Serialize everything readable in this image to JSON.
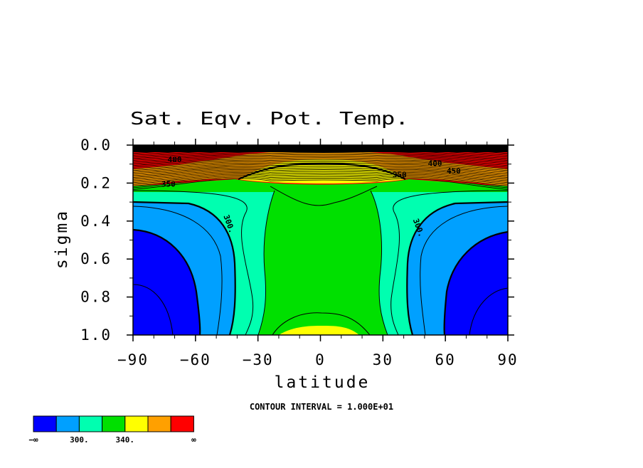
{
  "chart_data": {
    "type": "heatmap",
    "subtype": "filled-contour",
    "title": "Sat. Eqv. Pot. Temp.",
    "xlabel": "latitude",
    "ylabel": "sigma",
    "xlim": [
      -90,
      90
    ],
    "ylim": [
      0.0,
      1.0
    ],
    "y_inverted": true,
    "x_ticks": [
      -90,
      -60,
      -30,
      0,
      30,
      60,
      90
    ],
    "x_tick_labels": [
      "−90",
      "−60",
      "−30",
      "0",
      "30",
      "60",
      "90"
    ],
    "y_ticks": [
      0.0,
      0.2,
      0.4,
      0.6,
      0.8,
      1.0
    ],
    "y_tick_labels": [
      "0.0",
      "0.2",
      "0.4",
      "0.6",
      "0.8",
      "1.0"
    ],
    "contour_interval_text": "CONTOUR INTERVAL = 1.000E+01",
    "contour_interval": 10,
    "contour_labels": [
      {
        "text": "300.",
        "lat": -45,
        "sigma": 0.42
      },
      {
        "text": "300.",
        "lat": 46,
        "sigma": 0.44
      },
      {
        "text": "350",
        "lat": 38,
        "sigma": 0.17
      },
      {
        "text": "350",
        "lat": -73,
        "sigma": 0.22
      },
      {
        "text": "400",
        "lat": -70,
        "sigma": 0.09
      },
      {
        "text": "400",
        "lat": 55,
        "sigma": 0.11
      },
      {
        "text": "450",
        "lat": 64,
        "sigma": 0.15
      }
    ],
    "colorbar": {
      "colors": [
        "#0000ff",
        "#00a0ff",
        "#00ffb0",
        "#00e000",
        "#ffff00",
        "#ffa000",
        "#ff0000"
      ],
      "labels": [
        "−∞",
        "300.",
        "340.",
        "∞"
      ],
      "label_positions": [
        0,
        2,
        4,
        7
      ]
    }
  }
}
